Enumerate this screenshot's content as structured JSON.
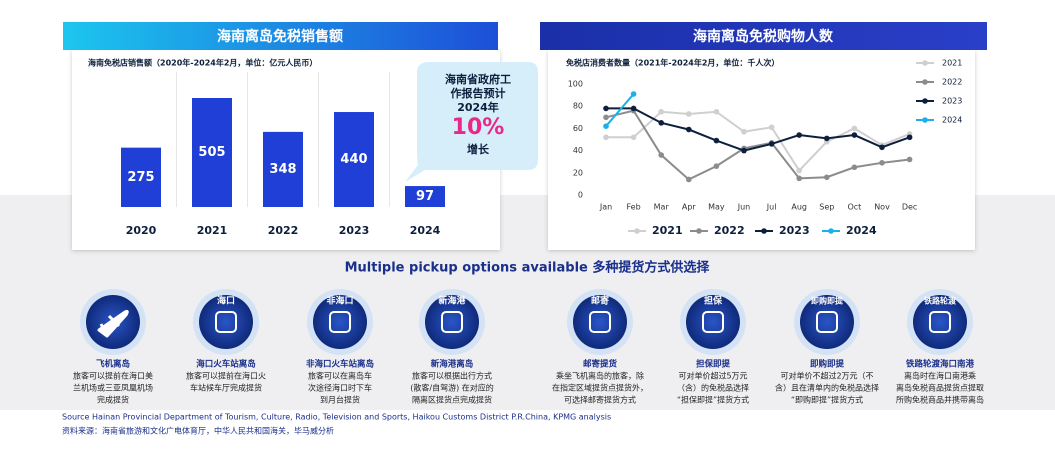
{
  "chart_data": [
    {
      "type": "bar",
      "title": "海南离岛免税销售额",
      "subtitle": "海南免税店销售额（2020年-2024年2月，单位：亿元人民币）",
      "categories": [
        "2020",
        "2021",
        "2022",
        "2023",
        "2024"
      ],
      "values": [
        275,
        505,
        348,
        440,
        97
      ],
      "color": "#1f3fd6",
      "callout": {
        "lines": [
          "海南省政府工",
          "作报告预计",
          "2024年"
        ],
        "highlight": "10%",
        "suffix": "增长"
      }
    },
    {
      "type": "line",
      "title": "海南离岛免税购物人数",
      "subtitle": "免税店消费者数量（2021年-2024年2月，单位：千人次）",
      "categories": [
        "Jan",
        "Feb",
        "Mar",
        "Apr",
        "May",
        "Jun",
        "Jul",
        "Aug",
        "Sep",
        "Oct",
        "Nov",
        "Dec"
      ],
      "ylim": [
        0,
        100
      ],
      "yticks": [
        0,
        20,
        40,
        60,
        80,
        100
      ],
      "grid": false,
      "series": [
        {
          "name": "2021",
          "color": "#cfcfcf",
          "values": [
            52,
            52,
            75,
            73,
            75,
            57,
            61,
            22,
            48,
            60,
            45,
            55
          ]
        },
        {
          "name": "2022",
          "color": "#8c8c8c",
          "values": [
            70,
            76,
            36,
            14,
            26,
            42,
            47,
            15,
            16,
            25,
            29,
            32
          ]
        },
        {
          "name": "2023",
          "color": "#0d1f3c",
          "values": [
            78,
            78,
            65,
            59,
            49,
            40,
            46,
            54,
            51,
            54,
            43,
            52
          ]
        },
        {
          "name": "2024",
          "color": "#1ab0e8",
          "values": [
            62,
            91,
            null,
            null,
            null,
            null,
            null,
            null,
            null,
            null,
            null,
            null
          ]
        }
      ]
    }
  ],
  "pickup": {
    "title": "Multiple pickup options available 多种提货方式供选择",
    "items": [
      {
        "icon": "",
        "name": "飞机离岛",
        "desc": [
          "旅客可以提前在海口美",
          "兰机场或三亚凤凰机场",
          "完成提货"
        ]
      },
      {
        "icon": "海口",
        "name": "海口火车站离岛",
        "desc": [
          "旅客可以提前在海口火",
          "车站候车厅完成提货"
        ]
      },
      {
        "icon": "非海口",
        "name": "非海口火车站离岛",
        "desc": [
          "旅客可以在离岛车",
          "次途径海口时下车",
          "到月台提货"
        ]
      },
      {
        "icon": "新海港",
        "name": "新海港离岛",
        "desc": [
          "旅客可以根据出行方式",
          "(散客/自驾游) 在对应的",
          "隔离区提货点完成提货"
        ]
      },
      {
        "icon": "邮寄",
        "name": "邮寄提货",
        "desc": [
          "乘坐飞机离岛的旅客，除",
          "在指定区域提货点提货外，",
          "可选择邮寄提货方式"
        ]
      },
      {
        "icon": "担保",
        "name": "担保即提",
        "desc": [
          "可对单价超过5万元",
          "（含）的免税品选择",
          "“担保即提”提货方式"
        ]
      },
      {
        "icon": "即购即提",
        "name": "即购即提",
        "desc": [
          "可对单价不超过2万元（不",
          "含）且在清单内的免税品选择",
          "“即购即提”提货方式"
        ]
      },
      {
        "icon": "铁路轮渡",
        "name": "铁路轮渡海口南港",
        "desc": [
          "离岛时在海口南港乘",
          "离岛免税商品提货点提取",
          "所购免税商品并携带离岛"
        ]
      }
    ]
  },
  "source": [
    "Source Hainan Provincial Department of Tourism, Culture, Radio, Television and Sports, Haikou Customs District P.R.China, KPMG analysis",
    "资料来源：海南省旅游和文化广电体育厅，中华人民共和国海关，毕马威分析"
  ]
}
